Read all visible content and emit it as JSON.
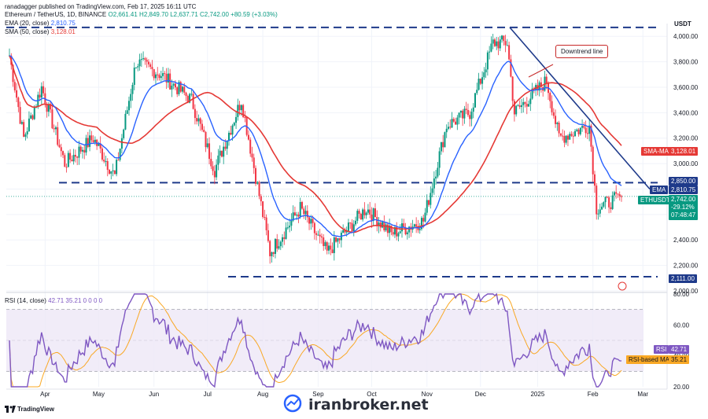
{
  "header": {
    "publisher": "ranadagger published on TradingView.com, Feb 17, 2025 16:11 UTC",
    "symbol": "Ethereum / TetherUS, 1D, BINANCE",
    "ohlc": "O2,661.41 H2,849.70 L2,637.71 C2,742.00 +80.59 (+3.03%)",
    "ema_label": "EMA (20, close)",
    "ema_value": "2,810.75",
    "sma_label": "SMA (50, close)",
    "sma_value": "3,128.01"
  },
  "rsi_header": {
    "label": "RSI (14, close)",
    "values": "42.71 35.21 0 0 0 0"
  },
  "currency": "USDT",
  "annotation": "Downtrend line",
  "tags": {
    "sma": {
      "label": "SMA-MA",
      "value": "3,128.01",
      "color": "#e53935"
    },
    "ema": {
      "label": "EMA",
      "value": "2,810.75",
      "color": "#1e3a8a"
    },
    "resistance": {
      "value": "2,850.00",
      "color": "#1e3a8a"
    },
    "price": {
      "label": "ETHUSDT",
      "value": "2,742.00",
      "change": "-29.12%",
      "time": "07:48:47",
      "color": "#089981"
    },
    "support": {
      "value": "2,111.00",
      "color": "#1e3a8a"
    },
    "rsi": {
      "label": "RSI",
      "value": "42.71",
      "color": "#7e57c2"
    },
    "rsi_ma": {
      "label": "RSI-based MA",
      "value": "35.21",
      "color": "#f9a825"
    }
  },
  "watermark": "iranbroker.net",
  "tv_logo": "TradingView",
  "chart_data": [
    {
      "type": "candlestick",
      "title": "Ethereum / TetherUS, 1D, BINANCE",
      "ylim": [
        2000,
        4100
      ],
      "y_ticks": [
        "2,000.00",
        "2,200.00",
        "2,400.00",
        "2,600.00",
        "2,800.00",
        "3,000.00",
        "3,200.00",
        "3,400.00",
        "3,600.00",
        "3,800.00",
        "4,000.00"
      ],
      "x_ticks": [
        "Apr",
        "May",
        "Jun",
        "Jul",
        "Aug",
        "Sep",
        "Oct",
        "Nov",
        "Dec",
        "2025",
        "Feb",
        "Mar"
      ],
      "horizontal_levels": [
        4070,
        2850,
        2111
      ],
      "key_points": [
        {
          "date": "Mar 12",
          "close": 3850
        },
        {
          "date": "Mar 20",
          "close": 3200
        },
        {
          "date": "Mar 30",
          "close": 3600
        },
        {
          "date": "Apr 12",
          "close": 3000
        },
        {
          "date": "Apr 28",
          "close": 3200
        },
        {
          "date": "May 10",
          "close": 2900
        },
        {
          "date": "May 22",
          "close": 3800
        },
        {
          "date": "Jun 05",
          "close": 3700
        },
        {
          "date": "Jun 22",
          "close": 3500
        },
        {
          "date": "Jul 05",
          "close": 2950
        },
        {
          "date": "Jul 20",
          "close": 3500
        },
        {
          "date": "Aug 05",
          "close": 2300
        },
        {
          "date": "Aug 22",
          "close": 2650
        },
        {
          "date": "Sep 06",
          "close": 2300
        },
        {
          "date": "Sep 28",
          "close": 2650
        },
        {
          "date": "Oct 12",
          "close": 2450
        },
        {
          "date": "Oct 30",
          "close": 2550
        },
        {
          "date": "Nov 12",
          "close": 3300
        },
        {
          "date": "Nov 25",
          "close": 3400
        },
        {
          "date": "Dec 08",
          "close": 3950
        },
        {
          "date": "Dec 16",
          "close": 3950
        },
        {
          "date": "Dec 20",
          "close": 3400
        },
        {
          "date": "Jan 06",
          "close": 3650
        },
        {
          "date": "Jan 13",
          "close": 3200
        },
        {
          "date": "Jan 30",
          "close": 3300
        },
        {
          "date": "Feb 03",
          "close": 2650
        },
        {
          "date": "Feb 17",
          "close": 2742
        }
      ],
      "series": [
        {
          "name": "EMA (20, close)",
          "last": 2810.75,
          "color": "#2962ff"
        },
        {
          "name": "SMA (50, close)",
          "last": 3128.01,
          "color": "#e53935"
        }
      ]
    },
    {
      "type": "line",
      "title": "RSI (14, close)",
      "ylim": [
        20,
        80
      ],
      "y_ticks": [
        "20.00",
        "40.00",
        "60.00",
        "80.00"
      ],
      "bands": [
        30,
        50,
        70
      ],
      "series": [
        {
          "name": "RSI",
          "last": 42.71,
          "color": "#7e57c2"
        },
        {
          "name": "RSI-based MA",
          "last": 35.21,
          "color": "#f9a825"
        }
      ]
    }
  ]
}
